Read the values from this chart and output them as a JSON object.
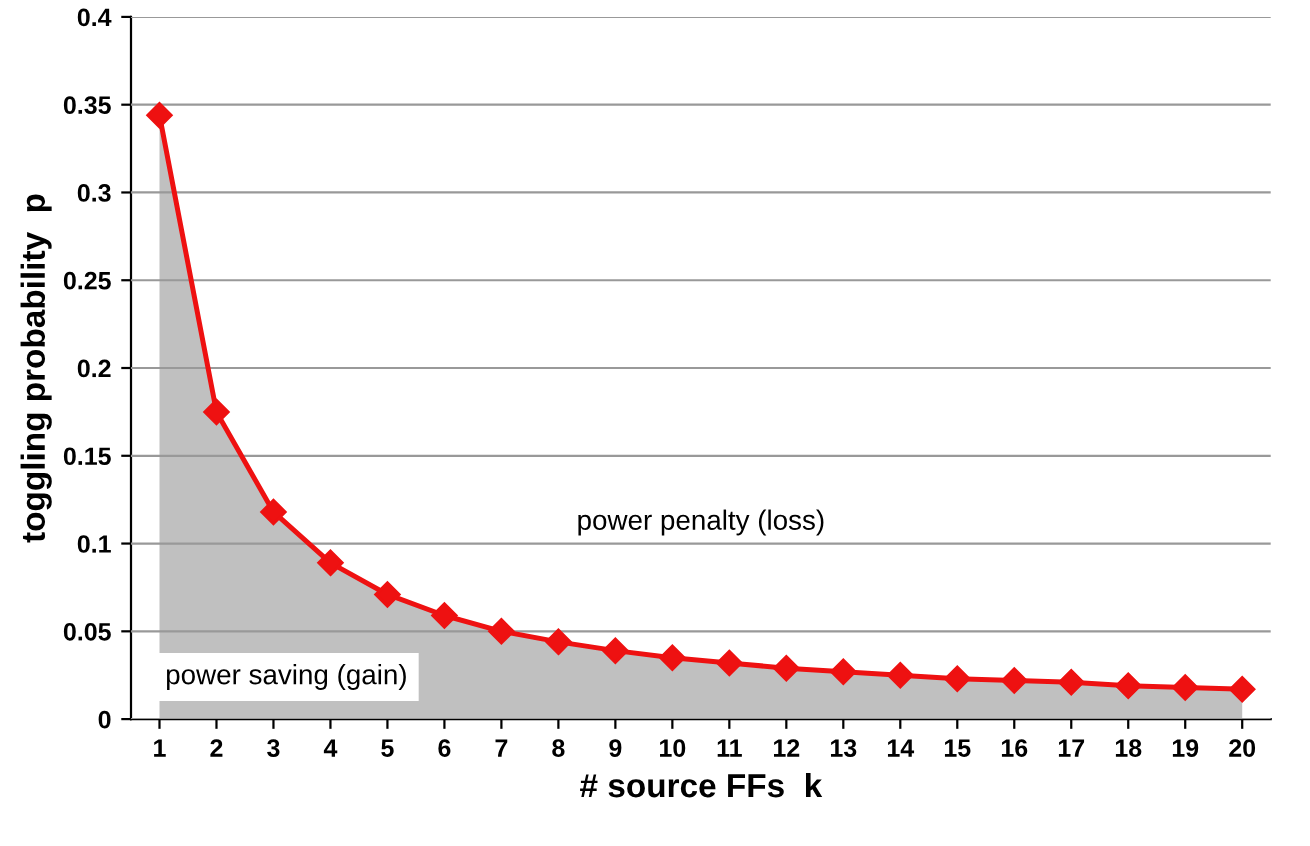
{
  "chart_data": {
    "type": "area",
    "xlabel": "# source FFs  k",
    "ylabel": "toggling probability  p",
    "categories": [
      "1",
      "2",
      "3",
      "4",
      "5",
      "6",
      "7",
      "8",
      "9",
      "10",
      "11",
      "12",
      "13",
      "14",
      "15",
      "16",
      "17",
      "18",
      "19",
      "20"
    ],
    "series": [
      {
        "color": "#ee1111",
        "marker": "diamond",
        "line_style": "solid",
        "values": [
          0.344,
          0.175,
          0.118,
          0.089,
          0.071,
          0.059,
          0.05,
          0.044,
          0.039,
          0.035,
          0.032,
          0.029,
          0.027,
          0.025,
          0.023,
          0.022,
          0.021,
          0.019,
          0.018,
          0.017
        ]
      }
    ],
    "ylim": [
      0,
      0.4
    ],
    "yticks": [
      0,
      0.05,
      0.1,
      0.15,
      0.2,
      0.25,
      0.3,
      0.35,
      0.4
    ],
    "grid": "y",
    "annotations": [
      "power penalty (loss)",
      "power saving (gain)"
    ]
  }
}
